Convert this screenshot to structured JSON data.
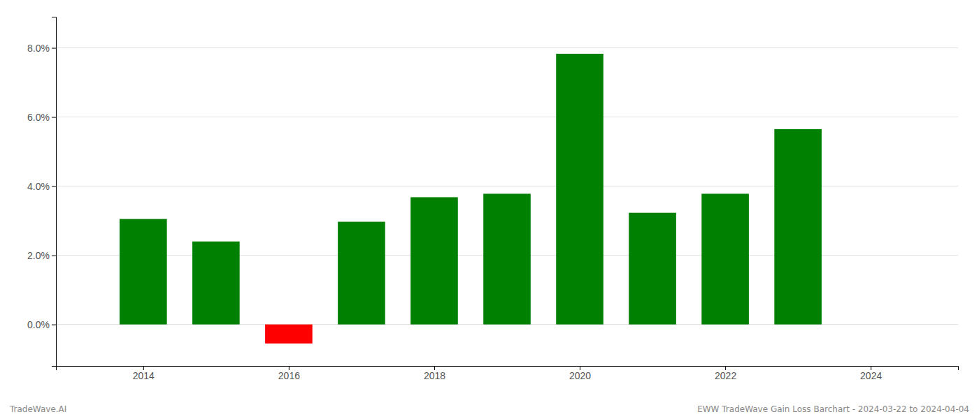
{
  "chart_data": {
    "type": "bar",
    "x": [
      2014,
      2015,
      2016,
      2017,
      2018,
      2019,
      2020,
      2021,
      2022,
      2023
    ],
    "values": [
      0.0305,
      0.024,
      -0.0055,
      0.0297,
      0.0368,
      0.0378,
      0.0783,
      0.0323,
      0.0378,
      0.0565
    ],
    "colors": [
      "#008000",
      "#008000",
      "#ff0000",
      "#008000",
      "#008000",
      "#008000",
      "#008000",
      "#008000",
      "#008000",
      "#008000"
    ],
    "xlim": [
      2012.8,
      2025.2
    ],
    "xticks": [
      2014,
      2016,
      2018,
      2020,
      2022,
      2024
    ],
    "ylim": [
      -0.012,
      0.089
    ],
    "yticks": [
      {
        "value": 0.0,
        "label": "0.0%"
      },
      {
        "value": 0.02,
        "label": "2.0%"
      },
      {
        "value": 0.04,
        "label": "4.0%"
      },
      {
        "value": 0.06,
        "label": "6.0%"
      },
      {
        "value": 0.08,
        "label": "8.0%"
      }
    ],
    "grid": true,
    "annotations": [
      "TradeWave.AI",
      "EWW TradeWave Gain Loss Barchart - 2024-03-22 to 2024-04-04"
    ]
  }
}
